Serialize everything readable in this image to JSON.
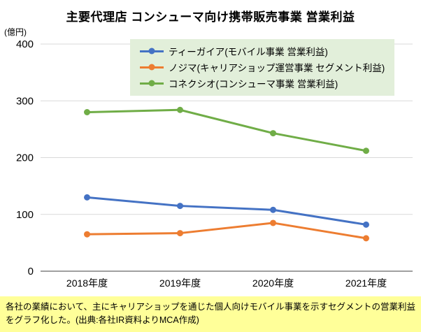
{
  "chart_data": {
    "type": "line",
    "title": "主要代理店 コンシューマ向け携帯販売事業 営業利益",
    "unit_label": "(億円)",
    "categories": [
      "2018年度",
      "2019年度",
      "2020年度",
      "2021年度"
    ],
    "series": [
      {
        "name": "ティーガイア(モバイル事業 営業利益)",
        "color": "#4472C4",
        "values": [
          130,
          115,
          108,
          82
        ]
      },
      {
        "name": "ノジマ(キャリアショップ運営事業 セグメント利益)",
        "color": "#ED7D31",
        "values": [
          65,
          67,
          85,
          58
        ]
      },
      {
        "name": "コネクシオ(コンシューマ事業 営業利益)",
        "color": "#70AD47",
        "values": [
          280,
          284,
          243,
          212
        ]
      }
    ],
    "ylim": [
      0,
      400
    ],
    "yticks": [
      0,
      100,
      200,
      300,
      400
    ],
    "grid": true,
    "legend_position": "top"
  },
  "footnote": {
    "text": "各社の業績において、主にキャリアショップを通じた個人向けモバイル事業を示すセグメントの営業利益をグラフ化した。(出典:各社IR資料よりMCA作成)"
  },
  "colors": {
    "legend_bg": "#E2EFDA",
    "footnote_bg": "#FFFF99",
    "gridline": "#D9D9D9",
    "axis": "#808080",
    "text": "#000000"
  }
}
